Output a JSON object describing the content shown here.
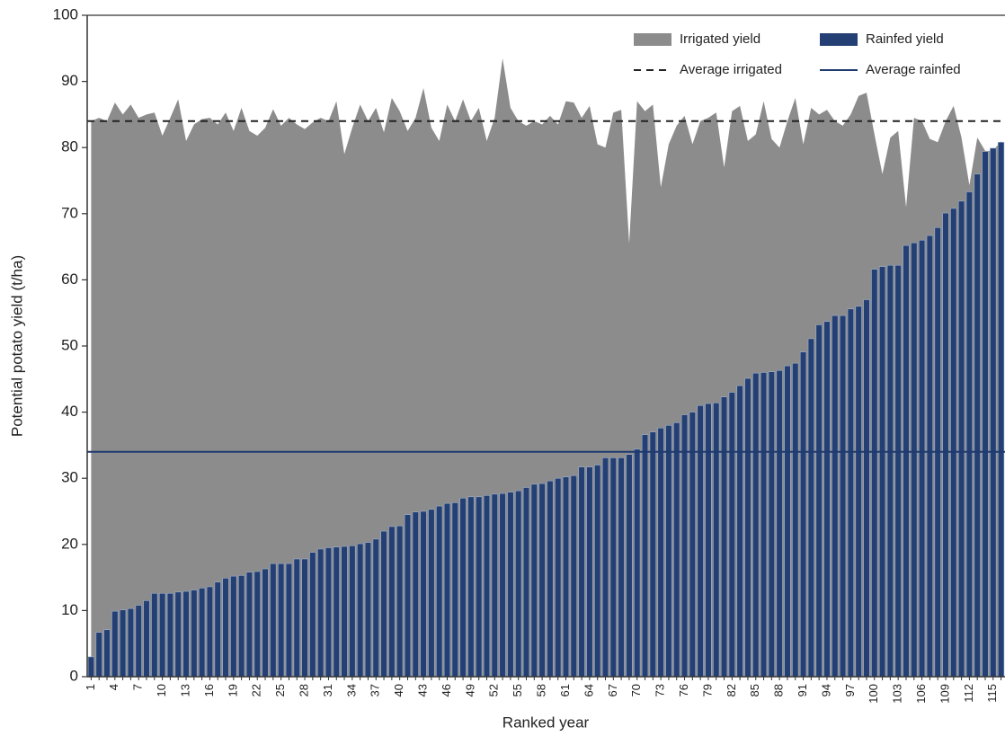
{
  "chart_data": {
    "type": "combo",
    "x_label": "Ranked year",
    "y_label": "Potential potato yield (t/ha)",
    "categories": [
      "1",
      null,
      null,
      "4",
      null,
      null,
      "7",
      null,
      null,
      "10",
      null,
      null,
      "13",
      null,
      null,
      "16",
      null,
      null,
      "19",
      null,
      null,
      "22",
      null,
      null,
      "25",
      null,
      null,
      "28",
      null,
      null,
      "31",
      null,
      null,
      "34",
      null,
      null,
      "37",
      null,
      null,
      "40",
      null,
      null,
      "43",
      null,
      null,
      "46",
      null,
      null,
      "49",
      null,
      null,
      "52",
      null,
      null,
      "55",
      null,
      null,
      "58",
      null,
      null,
      "61",
      null,
      null,
      "64",
      null,
      null,
      "67",
      null,
      null,
      "70",
      null,
      null,
      "73",
      null,
      null,
      "76",
      null,
      null,
      "79",
      null,
      null,
      "82",
      null,
      null,
      "85",
      null,
      null,
      "88",
      null,
      null,
      "91",
      null,
      null,
      "94",
      null,
      null,
      "97",
      null,
      null,
      "100",
      null,
      null,
      "103",
      null,
      null,
      "106",
      null,
      null,
      "109",
      null,
      null,
      "112",
      null,
      null,
      "115",
      null
    ],
    "series": [
      {
        "name": "Irrigated yield",
        "type": "area",
        "color": "#8c8c8c",
        "values": [
          84.0,
          84.5,
          84.0,
          86.8,
          85.0,
          86.5,
          84.5,
          85.0,
          85.3,
          81.8,
          84.5,
          87.3,
          81.0,
          83.5,
          84.3,
          84.5,
          83.5,
          85.3,
          82.5,
          86.0,
          82.5,
          81.8,
          83.0,
          85.8,
          83.3,
          84.5,
          83.5,
          82.8,
          83.8,
          84.5,
          84.0,
          87.0,
          79.0,
          83.0,
          86.5,
          84.0,
          86.0,
          82.3,
          87.5,
          85.5,
          82.5,
          84.5,
          89.0,
          83.0,
          81.0,
          86.5,
          84.0,
          87.3,
          84.0,
          86.0,
          81.0,
          84.5,
          93.5,
          86.0,
          84.0,
          83.3,
          84.0,
          83.5,
          84.8,
          83.5,
          87.0,
          86.8,
          84.5,
          86.3,
          80.5,
          80.0,
          85.3,
          85.7,
          65.5,
          87.0,
          85.5,
          86.5,
          74.0,
          80.5,
          83.3,
          84.8,
          80.5,
          84.0,
          84.5,
          85.3,
          77.0,
          85.5,
          86.3,
          81.0,
          82.0,
          87.0,
          81.3,
          80.0,
          84.0,
          87.5,
          80.5,
          86.0,
          85.0,
          85.7,
          84.0,
          83.3,
          85.0,
          87.8,
          88.3,
          82.0,
          76.0,
          81.5,
          82.5,
          71.0,
          84.5,
          84.0,
          81.3,
          80.8,
          84.0,
          86.3,
          81.5,
          74.3,
          81.5,
          79.5,
          79.5,
          81.0
        ]
      },
      {
        "name": "Rainfed yield",
        "type": "bar",
        "color": "#233f73",
        "values": [
          3.0,
          6.7,
          7.1,
          9.9,
          10.1,
          10.3,
          10.8,
          11.5,
          12.6,
          12.6,
          12.6,
          12.8,
          12.9,
          13.1,
          13.4,
          13.6,
          14.3,
          14.9,
          15.2,
          15.3,
          15.8,
          15.9,
          16.3,
          17.1,
          17.1,
          17.1,
          17.8,
          17.8,
          18.8,
          19.3,
          19.5,
          19.6,
          19.7,
          19.8,
          20.1,
          20.3,
          20.8,
          22.0,
          22.7,
          22.8,
          24.5,
          24.9,
          25.0,
          25.3,
          25.8,
          26.2,
          26.3,
          27.0,
          27.2,
          27.2,
          27.4,
          27.6,
          27.7,
          27.9,
          28.1,
          28.6,
          29.1,
          29.2,
          29.6,
          30.0,
          30.2,
          30.4,
          31.7,
          31.7,
          32.0,
          33.1,
          33.1,
          33.1,
          33.6,
          34.4,
          36.6,
          37.0,
          37.6,
          38.0,
          38.4,
          39.6,
          40.0,
          41.0,
          41.3,
          41.4,
          42.3,
          43.0,
          44.0,
          45.1,
          45.9,
          46.0,
          46.1,
          46.3,
          47.0,
          47.4,
          49.1,
          51.1,
          53.2,
          53.7,
          54.6,
          54.6,
          55.6,
          56.0,
          57.0,
          61.6,
          62.0,
          62.2,
          62.2,
          65.2,
          65.6,
          66.0,
          66.7,
          67.9,
          70.1,
          70.8,
          71.9,
          73.3,
          76.0,
          79.4,
          79.9,
          80.8
        ]
      }
    ],
    "reference_lines": [
      {
        "name": "Average irrigated",
        "value": 84,
        "color": "#222222",
        "style": "dashed"
      },
      {
        "name": "Average rainfed",
        "value": 34,
        "color": "#1f3a6e",
        "style": "solid"
      }
    ],
    "ylim": [
      0,
      100
    ],
    "yticks": [
      0,
      10,
      20,
      30,
      40,
      50,
      60,
      70,
      80,
      90,
      100
    ],
    "legend": "top-right"
  }
}
